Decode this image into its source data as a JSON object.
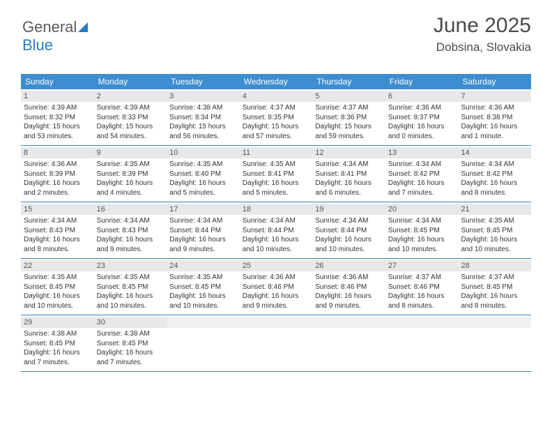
{
  "logo": {
    "part1": "General",
    "part2": "Blue"
  },
  "header": {
    "month": "June 2025",
    "location": "Dobsina, Slovakia"
  },
  "colors": {
    "header_bg": "#3d8dd1",
    "header_text": "#ffffff",
    "daynum_bg": "#e7e8e9",
    "week_border": "#3d7db0",
    "body_text": "#333333",
    "logo_blue": "#2a7dc4"
  },
  "weekdays": [
    "Sunday",
    "Monday",
    "Tuesday",
    "Wednesday",
    "Thursday",
    "Friday",
    "Saturday"
  ],
  "days": [
    {
      "n": 1,
      "sunrise": "4:39 AM",
      "sunset": "8:32 PM",
      "daylight": "15 hours and 53 minutes."
    },
    {
      "n": 2,
      "sunrise": "4:39 AM",
      "sunset": "8:33 PM",
      "daylight": "15 hours and 54 minutes."
    },
    {
      "n": 3,
      "sunrise": "4:38 AM",
      "sunset": "8:34 PM",
      "daylight": "15 hours and 56 minutes."
    },
    {
      "n": 4,
      "sunrise": "4:37 AM",
      "sunset": "8:35 PM",
      "daylight": "15 hours and 57 minutes."
    },
    {
      "n": 5,
      "sunrise": "4:37 AM",
      "sunset": "8:36 PM",
      "daylight": "15 hours and 59 minutes."
    },
    {
      "n": 6,
      "sunrise": "4:36 AM",
      "sunset": "8:37 PM",
      "daylight": "16 hours and 0 minutes."
    },
    {
      "n": 7,
      "sunrise": "4:36 AM",
      "sunset": "8:38 PM",
      "daylight": "16 hours and 1 minute."
    },
    {
      "n": 8,
      "sunrise": "4:36 AM",
      "sunset": "8:39 PM",
      "daylight": "16 hours and 2 minutes."
    },
    {
      "n": 9,
      "sunrise": "4:35 AM",
      "sunset": "8:39 PM",
      "daylight": "16 hours and 4 minutes."
    },
    {
      "n": 10,
      "sunrise": "4:35 AM",
      "sunset": "8:40 PM",
      "daylight": "16 hours and 5 minutes."
    },
    {
      "n": 11,
      "sunrise": "4:35 AM",
      "sunset": "8:41 PM",
      "daylight": "16 hours and 5 minutes."
    },
    {
      "n": 12,
      "sunrise": "4:34 AM",
      "sunset": "8:41 PM",
      "daylight": "16 hours and 6 minutes."
    },
    {
      "n": 13,
      "sunrise": "4:34 AM",
      "sunset": "8:42 PM",
      "daylight": "16 hours and 7 minutes."
    },
    {
      "n": 14,
      "sunrise": "4:34 AM",
      "sunset": "8:42 PM",
      "daylight": "16 hours and 8 minutes."
    },
    {
      "n": 15,
      "sunrise": "4:34 AM",
      "sunset": "8:43 PM",
      "daylight": "16 hours and 8 minutes."
    },
    {
      "n": 16,
      "sunrise": "4:34 AM",
      "sunset": "8:43 PM",
      "daylight": "16 hours and 9 minutes."
    },
    {
      "n": 17,
      "sunrise": "4:34 AM",
      "sunset": "8:44 PM",
      "daylight": "16 hours and 9 minutes."
    },
    {
      "n": 18,
      "sunrise": "4:34 AM",
      "sunset": "8:44 PM",
      "daylight": "16 hours and 10 minutes."
    },
    {
      "n": 19,
      "sunrise": "4:34 AM",
      "sunset": "8:44 PM",
      "daylight": "16 hours and 10 minutes."
    },
    {
      "n": 20,
      "sunrise": "4:34 AM",
      "sunset": "8:45 PM",
      "daylight": "16 hours and 10 minutes."
    },
    {
      "n": 21,
      "sunrise": "4:35 AM",
      "sunset": "8:45 PM",
      "daylight": "16 hours and 10 minutes."
    },
    {
      "n": 22,
      "sunrise": "4:35 AM",
      "sunset": "8:45 PM",
      "daylight": "16 hours and 10 minutes."
    },
    {
      "n": 23,
      "sunrise": "4:35 AM",
      "sunset": "8:45 PM",
      "daylight": "16 hours and 10 minutes."
    },
    {
      "n": 24,
      "sunrise": "4:35 AM",
      "sunset": "8:45 PM",
      "daylight": "16 hours and 10 minutes."
    },
    {
      "n": 25,
      "sunrise": "4:36 AM",
      "sunset": "8:46 PM",
      "daylight": "16 hours and 9 minutes."
    },
    {
      "n": 26,
      "sunrise": "4:36 AM",
      "sunset": "8:46 PM",
      "daylight": "16 hours and 9 minutes."
    },
    {
      "n": 27,
      "sunrise": "4:37 AM",
      "sunset": "8:46 PM",
      "daylight": "16 hours and 8 minutes."
    },
    {
      "n": 28,
      "sunrise": "4:37 AM",
      "sunset": "8:45 PM",
      "daylight": "16 hours and 8 minutes."
    },
    {
      "n": 29,
      "sunrise": "4:38 AM",
      "sunset": "8:45 PM",
      "daylight": "16 hours and 7 minutes."
    },
    {
      "n": 30,
      "sunrise": "4:38 AM",
      "sunset": "8:45 PM",
      "daylight": "16 hours and 7 minutes."
    }
  ],
  "labels": {
    "sunrise": "Sunrise:",
    "sunset": "Sunset:",
    "daylight": "Daylight:"
  },
  "layout": {
    "start_weekday": 0,
    "total_cells": 35
  }
}
